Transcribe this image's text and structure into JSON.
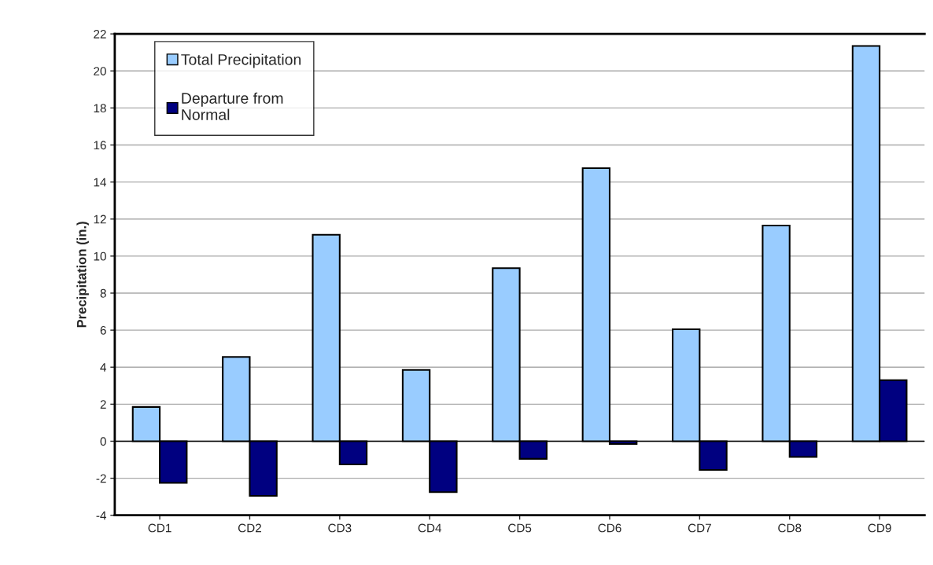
{
  "chart_data": {
    "type": "bar",
    "ylabel": "Precipitation (in.)",
    "categories": [
      "CD1",
      "CD2",
      "CD3",
      "CD4",
      "CD5",
      "CD6",
      "CD7",
      "CD8",
      "CD9"
    ],
    "series": [
      {
        "name": "Total Precipitation",
        "color": "#99ccff",
        "values": [
          1.85,
          4.55,
          11.15,
          3.85,
          9.35,
          14.75,
          6.05,
          11.65,
          21.35
        ]
      },
      {
        "name": "Departure from\nNormal",
        "color": "#000080",
        "values": [
          -2.25,
          -2.95,
          -1.25,
          -2.75,
          -0.95,
          -0.15,
          -1.55,
          -0.85,
          3.3
        ]
      }
    ],
    "ylim": [
      -4,
      22
    ],
    "yticks": [
      -4,
      -2,
      0,
      2,
      4,
      6,
      8,
      10,
      12,
      14,
      16,
      18,
      20,
      22
    ],
    "grid": "y",
    "legend": "top left"
  }
}
